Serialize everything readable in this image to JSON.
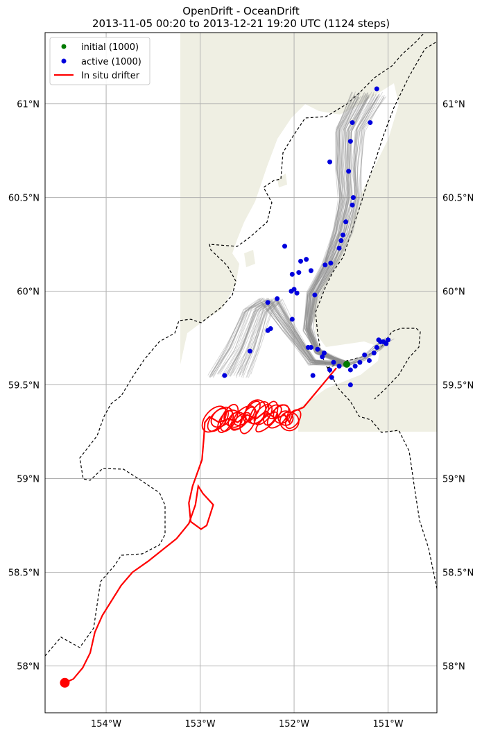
{
  "title": {
    "line1": "OpenDrift - OceanDrift",
    "line2": "2013-11-05 00:20 to 2013-12-21 19:20 UTC (1124 steps)"
  },
  "chart_data": {
    "type": "map",
    "lon_range": [
      -154.65,
      -150.48
    ],
    "lat_range": [
      57.75,
      61.38
    ],
    "grid": true,
    "lon_ticks": [
      {
        "value": -154,
        "label": "154°W"
      },
      {
        "value": -153,
        "label": "153°W"
      },
      {
        "value": -152,
        "label": "152°W"
      },
      {
        "value": -151,
        "label": "151°W"
      }
    ],
    "lat_ticks": [
      {
        "value": 58,
        "label": "58°N"
      },
      {
        "value": 58.5,
        "label": "58.5°N"
      },
      {
        "value": 59,
        "label": "59°N"
      },
      {
        "value": 59.5,
        "label": "59.5°N"
      },
      {
        "value": 60,
        "label": "60°N"
      },
      {
        "value": 60.5,
        "label": "60.5°N"
      },
      {
        "value": 61,
        "label": "61°N"
      }
    ],
    "legend_position": "top-left",
    "legend": [
      {
        "label": "initial (1000)",
        "kind": "marker",
        "color": "#007a00"
      },
      {
        "label": "active (1000)",
        "kind": "marker",
        "color": "#0000dd"
      },
      {
        "label": "In situ drifter",
        "kind": "line",
        "color": "#ff0000"
      }
    ],
    "colors": {
      "land": "#efefe3",
      "trajectory": "#8c8c8c",
      "coastline": "#000000",
      "grid": "#b0b0b0"
    },
    "initial_position": [
      -151.44,
      59.61
    ],
    "drifter_track": [
      [
        -154.44,
        57.91
      ],
      [
        -154.35,
        57.93
      ],
      [
        -154.25,
        57.99
      ],
      [
        -154.17,
        58.07
      ],
      [
        -154.12,
        58.18
      ],
      [
        -154.04,
        58.27
      ],
      [
        -153.94,
        58.35
      ],
      [
        -153.84,
        58.43
      ],
      [
        -153.72,
        58.5
      ],
      [
        -153.55,
        58.56
      ],
      [
        -153.4,
        58.62
      ],
      [
        -153.25,
        58.68
      ],
      [
        -153.12,
        58.76
      ],
      [
        -153.05,
        58.86
      ],
      [
        -153.02,
        58.96
      ],
      [
        -152.97,
        58.92
      ],
      [
        -152.86,
        58.86
      ],
      [
        -152.93,
        58.75
      ],
      [
        -152.99,
        58.73
      ],
      [
        -153.1,
        58.77
      ],
      [
        -153.12,
        58.87
      ],
      [
        -153.08,
        58.96
      ],
      [
        -152.98,
        59.1
      ],
      [
        -152.96,
        59.22
      ],
      [
        -152.95,
        59.3
      ],
      [
        -152.9,
        59.33
      ],
      [
        -152.8,
        59.3
      ],
      [
        -152.7,
        59.32
      ],
      [
        -152.6,
        59.3
      ],
      [
        -152.5,
        59.34
      ],
      [
        -152.4,
        59.32
      ],
      [
        -152.3,
        59.36
      ],
      [
        -152.2,
        59.32
      ],
      [
        -152.1,
        59.34
      ],
      [
        -152.05,
        59.3
      ],
      [
        -152.0,
        59.36
      ],
      [
        -151.9,
        59.38
      ],
      [
        -151.8,
        59.44
      ],
      [
        -151.7,
        59.5
      ],
      [
        -151.6,
        59.56
      ],
      [
        -151.55,
        59.59
      ]
    ],
    "active_particles": [
      [
        -151.12,
        61.08
      ],
      [
        -151.38,
        60.9
      ],
      [
        -151.19,
        60.9
      ],
      [
        -151.4,
        60.8
      ],
      [
        -151.62,
        60.69
      ],
      [
        -151.42,
        60.64
      ],
      [
        -151.37,
        60.5
      ],
      [
        -151.38,
        60.46
      ],
      [
        -151.45,
        60.37
      ],
      [
        -151.48,
        60.3
      ],
      [
        -151.52,
        60.23
      ],
      [
        -151.5,
        60.27
      ],
      [
        -152.1,
        60.24
      ],
      [
        -151.61,
        60.15
      ],
      [
        -151.67,
        60.14
      ],
      [
        -151.87,
        60.17
      ],
      [
        -151.93,
        60.16
      ],
      [
        -151.82,
        60.11
      ],
      [
        -151.95,
        60.1
      ],
      [
        -152.02,
        60.09
      ],
      [
        -152.0,
        60.01
      ],
      [
        -152.03,
        60.0
      ],
      [
        -151.97,
        59.99
      ],
      [
        -151.78,
        59.98
      ],
      [
        -152.18,
        59.96
      ],
      [
        -152.28,
        59.94
      ],
      [
        -152.02,
        59.85
      ],
      [
        -152.25,
        59.8
      ],
      [
        -152.28,
        59.79
      ],
      [
        -152.47,
        59.68
      ],
      [
        -151.82,
        59.7
      ],
      [
        -151.75,
        59.69
      ],
      [
        -151.68,
        59.67
      ],
      [
        -151.58,
        59.62
      ],
      [
        -151.52,
        59.6
      ],
      [
        -151.45,
        59.61
      ],
      [
        -151.4,
        59.58
      ],
      [
        -151.3,
        59.62
      ],
      [
        -151.2,
        59.63
      ],
      [
        -151.15,
        59.67
      ],
      [
        -151.12,
        59.7
      ],
      [
        -151.08,
        59.73
      ],
      [
        -151.02,
        59.72
      ],
      [
        -151.0,
        59.74
      ],
      [
        -151.05,
        59.73
      ],
      [
        -151.1,
        59.74
      ],
      [
        -151.6,
        59.54
      ],
      [
        -151.4,
        59.5
      ],
      [
        -151.8,
        59.55
      ],
      [
        -151.62,
        59.58
      ],
      [
        -151.35,
        59.6
      ],
      [
        -152.74,
        59.55
      ],
      [
        -151.7,
        59.65
      ],
      [
        -151.85,
        59.7
      ],
      [
        -151.25,
        59.66
      ]
    ]
  }
}
